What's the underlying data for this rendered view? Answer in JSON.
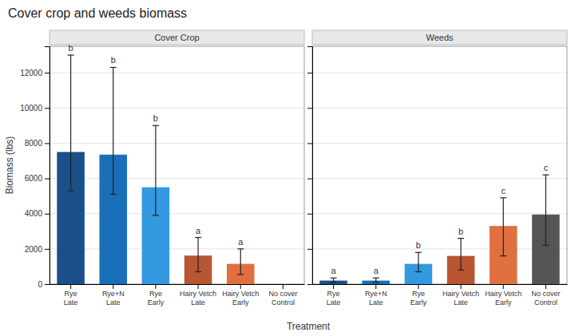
{
  "chart_data": {
    "type": "bar",
    "title": "Cover crop and weeds biomass",
    "xlabel": "Treatment",
    "ylabel": "Biomass (lbs)",
    "categories": [
      "Rye\nLate",
      "Rye+N\nLate",
      "Rye\nEarly",
      "Hairy Vetch\nLate",
      "Hairy Vetch\nEarly",
      "No cover\nControl"
    ],
    "series": [
      {
        "name": "Cover Crop",
        "values": [
          7500,
          7350,
          5500,
          1620,
          1150,
          null
        ],
        "err_low": [
          2200,
          2250,
          1600,
          920,
          600,
          null
        ],
        "err_high": [
          5500,
          4950,
          3500,
          1030,
          850,
          null
        ],
        "colors": [
          "#1a4f8a",
          "#1a6fba",
          "#3399e0",
          "#b85533",
          "#e07040",
          "#555555"
        ],
        "letters": [
          "b",
          "b",
          "b",
          "a",
          "a",
          null
        ]
      },
      {
        "name": "Weeds",
        "values": [
          200,
          200,
          1150,
          1600,
          3300,
          3950
        ],
        "err_low": [
          100,
          100,
          450,
          800,
          1700,
          1750
        ],
        "err_high": [
          150,
          150,
          650,
          1000,
          1600,
          2250
        ],
        "colors": [
          "#1a4f8a",
          "#1a6fba",
          "#3399e0",
          "#b85533",
          "#e07040",
          "#555555"
        ],
        "letters": [
          "a",
          "a",
          "b",
          "b",
          "c",
          "c"
        ]
      }
    ],
    "ylim": [
      0,
      13500
    ],
    "yticks": [
      0,
      2000,
      4000,
      6000,
      8000,
      10000,
      12000
    ],
    "grid": true
  }
}
